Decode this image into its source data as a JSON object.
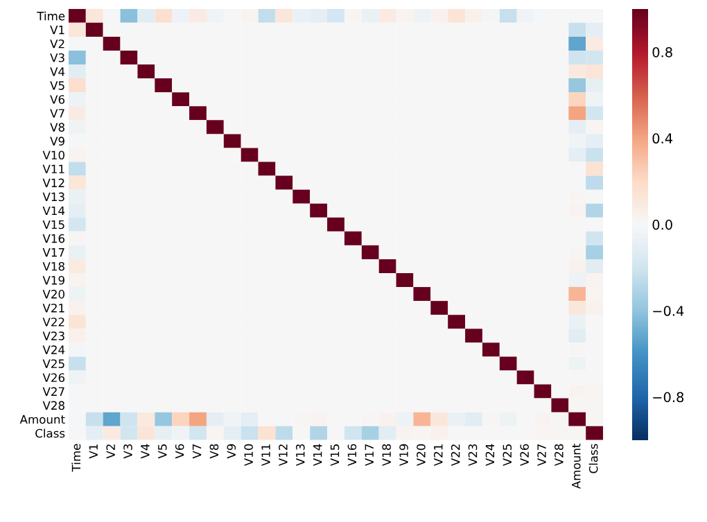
{
  "chart_data": {
    "type": "heatmap",
    "categories": [
      "Time",
      "V1",
      "V2",
      "V3",
      "V4",
      "V5",
      "V6",
      "V7",
      "V8",
      "V9",
      "V10",
      "V11",
      "V12",
      "V13",
      "V14",
      "V15",
      "V16",
      "V17",
      "V18",
      "V19",
      "V20",
      "V21",
      "V22",
      "V23",
      "V24",
      "V25",
      "V26",
      "V27",
      "V28",
      "Amount",
      "Class"
    ],
    "y_categories": [
      "Time",
      "V1",
      "V2",
      "V3",
      "V4",
      "V5",
      "V6",
      "V7",
      "V8",
      "V9",
      "V10",
      "V11",
      "V12",
      "V13",
      "V14",
      "V15",
      "V16",
      "V17",
      "V18",
      "V19",
      "V20",
      "V21",
      "V22",
      "V23",
      "V24",
      "V25",
      "V26",
      "V27",
      "V28",
      "Amount",
      "Class"
    ],
    "cells": [
      [
        1,
        0.12,
        -0.01,
        -0.42,
        -0.11,
        0.17,
        -0.06,
        0.08,
        -0.04,
        -0.01,
        0.03,
        -0.25,
        0.12,
        -0.07,
        -0.1,
        -0.18,
        0.01,
        -0.07,
        0.09,
        0.03,
        -0.05,
        0.04,
        0.14,
        0.05,
        -0.02,
        -0.23,
        -0.04,
        -0.01,
        -0.01,
        -0.01,
        -0.01
      ],
      [
        0.12,
        1,
        0,
        0,
        0,
        0,
        0,
        0,
        0,
        0,
        0,
        0,
        0,
        0,
        0,
        0,
        0,
        0,
        0,
        0,
        0,
        0,
        0,
        0,
        0,
        0,
        0,
        0,
        0,
        -0.23,
        -0.1
      ],
      [
        -0.01,
        0,
        1,
        0,
        0,
        0,
        0,
        0,
        0,
        0,
        0,
        0,
        0,
        0,
        0,
        0,
        0,
        0,
        0,
        0,
        0,
        0,
        0,
        0,
        0,
        0,
        0,
        0,
        0,
        -0.53,
        0.09
      ],
      [
        -0.42,
        0,
        0,
        1,
        0,
        0,
        0,
        0,
        0,
        0,
        0,
        0,
        0,
        0,
        0,
        0,
        0,
        0,
        0,
        0,
        0,
        0,
        0,
        0,
        0,
        0,
        0,
        0,
        0,
        -0.21,
        -0.19
      ],
      [
        -0.11,
        0,
        0,
        0,
        1,
        0,
        0,
        0,
        0,
        0,
        0,
        0,
        0,
        0,
        0,
        0,
        0,
        0,
        0,
        0,
        0,
        0,
        0,
        0,
        0,
        0,
        0,
        0,
        0,
        0.1,
        0.13
      ],
      [
        0.17,
        0,
        0,
        0,
        0,
        1,
        0,
        0,
        0,
        0,
        0,
        0,
        0,
        0,
        0,
        0,
        0,
        0,
        0,
        0,
        0,
        0,
        0,
        0,
        0,
        0,
        0,
        0,
        0,
        -0.39,
        -0.09
      ],
      [
        -0.06,
        0,
        0,
        0,
        0,
        0,
        1,
        0,
        0,
        0,
        0,
        0,
        0,
        0,
        0,
        0,
        0,
        0,
        0,
        0,
        0,
        0,
        0,
        0,
        0,
        0,
        0,
        0,
        0,
        0.22,
        -0.04
      ],
      [
        0.08,
        0,
        0,
        0,
        0,
        0,
        0,
        1,
        0,
        0,
        0,
        0,
        0,
        0,
        0,
        0,
        0,
        0,
        0,
        0,
        0,
        0,
        0,
        0,
        0,
        0,
        0,
        0,
        0,
        0.4,
        -0.19
      ],
      [
        -0.04,
        0,
        0,
        0,
        0,
        0,
        0,
        0,
        1,
        0,
        0,
        0,
        0,
        0,
        0,
        0,
        0,
        0,
        0,
        0,
        0,
        0,
        0,
        0,
        0,
        0,
        0,
        0,
        0,
        -0.1,
        0.02
      ],
      [
        -0.01,
        0,
        0,
        0,
        0,
        0,
        0,
        0,
        0,
        1,
        0,
        0,
        0,
        0,
        0,
        0,
        0,
        0,
        0,
        0,
        0,
        0,
        0,
        0,
        0,
        0,
        0,
        0,
        0,
        -0.04,
        -0.1
      ],
      [
        0.03,
        0,
        0,
        0,
        0,
        0,
        0,
        0,
        0,
        0,
        1,
        0,
        0,
        0,
        0,
        0,
        0,
        0,
        0,
        0,
        0,
        0,
        0,
        0,
        0,
        0,
        0,
        0,
        0,
        -0.1,
        -0.22
      ],
      [
        -0.25,
        0,
        0,
        0,
        0,
        0,
        0,
        0,
        0,
        0,
        0,
        1,
        0,
        0,
        0,
        0,
        0,
        0,
        0,
        0,
        0,
        0,
        0,
        0,
        0,
        0,
        0,
        0,
        0,
        0,
        0.15
      ],
      [
        0.12,
        0,
        0,
        0,
        0,
        0,
        0,
        0,
        0,
        0,
        0,
        0,
        1,
        0,
        0,
        0,
        0,
        0,
        0,
        0,
        0,
        0,
        0,
        0,
        0,
        0,
        0,
        0,
        0,
        -0.01,
        -0.26
      ],
      [
        -0.07,
        0,
        0,
        0,
        0,
        0,
        0,
        0,
        0,
        0,
        0,
        0,
        0,
        1,
        0,
        0,
        0,
        0,
        0,
        0,
        0,
        0,
        0,
        0,
        0,
        0,
        0,
        0,
        0,
        0.01,
        0
      ],
      [
        -0.1,
        0,
        0,
        0,
        0,
        0,
        0,
        0,
        0,
        0,
        0,
        0,
        0,
        0,
        1,
        0,
        0,
        0,
        0,
        0,
        0,
        0,
        0,
        0,
        0,
        0,
        0,
        0,
        0,
        0.03,
        -0.3
      ],
      [
        -0.18,
        0,
        0,
        0,
        0,
        0,
        0,
        0,
        0,
        0,
        0,
        0,
        0,
        0,
        0,
        1,
        0,
        0,
        0,
        0,
        0,
        0,
        0,
        0,
        0,
        0,
        0,
        0,
        0,
        0,
        0
      ],
      [
        0.01,
        0,
        0,
        0,
        0,
        0,
        0,
        0,
        0,
        0,
        0,
        0,
        0,
        0,
        0,
        0,
        1,
        0,
        0,
        0,
        0,
        0,
        0,
        0,
        0,
        0,
        0,
        0,
        0,
        0,
        -0.2
      ],
      [
        -0.07,
        0,
        0,
        0,
        0,
        0,
        0,
        0,
        0,
        0,
        0,
        0,
        0,
        0,
        0,
        0,
        0,
        1,
        0,
        0,
        0,
        0,
        0,
        0,
        0,
        0,
        0,
        0,
        0,
        0.01,
        -0.33
      ],
      [
        0.09,
        0,
        0,
        0,
        0,
        0,
        0,
        0,
        0,
        0,
        0,
        0,
        0,
        0,
        0,
        0,
        0,
        0,
        1,
        0,
        0,
        0,
        0,
        0,
        0,
        0,
        0,
        0,
        0,
        0.04,
        -0.11
      ],
      [
        0.03,
        0,
        0,
        0,
        0,
        0,
        0,
        0,
        0,
        0,
        0,
        0,
        0,
        0,
        0,
        0,
        0,
        0,
        0,
        1,
        0,
        0,
        0,
        0,
        0,
        0,
        0,
        0,
        0,
        -0.06,
        0.03
      ],
      [
        -0.05,
        0,
        0,
        0,
        0,
        0,
        0,
        0,
        0,
        0,
        0,
        0,
        0,
        0,
        0,
        0,
        0,
        0,
        0,
        0,
        1,
        0,
        0,
        0,
        0,
        0,
        0,
        0,
        0,
        0.34,
        0.02
      ],
      [
        0.04,
        0,
        0,
        0,
        0,
        0,
        0,
        0,
        0,
        0,
        0,
        0,
        0,
        0,
        0,
        0,
        0,
        0,
        0,
        0,
        0,
        1,
        0,
        0,
        0,
        0,
        0,
        0,
        0,
        0.11,
        0.04
      ],
      [
        0.14,
        0,
        0,
        0,
        0,
        0,
        0,
        0,
        0,
        0,
        0,
        0,
        0,
        0,
        0,
        0,
        0,
        0,
        0,
        0,
        0,
        0,
        1,
        0,
        0,
        0,
        0,
        0,
        0,
        -0.07,
        0
      ],
      [
        0.05,
        0,
        0,
        0,
        0,
        0,
        0,
        0,
        0,
        0,
        0,
        0,
        0,
        0,
        0,
        0,
        0,
        0,
        0,
        0,
        0,
        0,
        0,
        1,
        0,
        0,
        0,
        0,
        0,
        -0.11,
        0
      ],
      [
        -0.02,
        0,
        0,
        0,
        0,
        0,
        0,
        0,
        0,
        0,
        0,
        0,
        0,
        0,
        0,
        0,
        0,
        0,
        0,
        0,
        0,
        0,
        0,
        0,
        1,
        0,
        0,
        0,
        0,
        0.01,
        -0.01
      ],
      [
        -0.23,
        0,
        0,
        0,
        0,
        0,
        0,
        0,
        0,
        0,
        0,
        0,
        0,
        0,
        0,
        0,
        0,
        0,
        0,
        0,
        0,
        0,
        0,
        0,
        0,
        1,
        0,
        0,
        0,
        -0.05,
        0
      ],
      [
        -0.04,
        0,
        0,
        0,
        0,
        0,
        0,
        0,
        0,
        0,
        0,
        0,
        0,
        0,
        0,
        0,
        0,
        0,
        0,
        0,
        0,
        0,
        0,
        0,
        0,
        0,
        1,
        0,
        0,
        0,
        0
      ],
      [
        -0.01,
        0,
        0,
        0,
        0,
        0,
        0,
        0,
        0,
        0,
        0,
        0,
        0,
        0,
        0,
        0,
        0,
        0,
        0,
        0,
        0,
        0,
        0,
        0,
        0,
        0,
        0,
        1,
        0,
        0.03,
        0.02
      ],
      [
        -0.01,
        0,
        0,
        0,
        0,
        0,
        0,
        0,
        0,
        0,
        0,
        0,
        0,
        0,
        0,
        0,
        0,
        0,
        0,
        0,
        0,
        0,
        0,
        0,
        0,
        0,
        0,
        0,
        1,
        0.01,
        0.01
      ],
      [
        -0.01,
        -0.23,
        -0.53,
        -0.21,
        0.1,
        -0.39,
        0.22,
        0.4,
        -0.1,
        -0.04,
        -0.1,
        0,
        -0.01,
        0.01,
        0.03,
        0,
        0,
        0.01,
        0.04,
        -0.06,
        0.34,
        0.11,
        -0.07,
        -0.11,
        0.01,
        -0.05,
        0,
        0.03,
        0.01,
        1,
        0.01
      ],
      [
        -0.01,
        -0.1,
        0.09,
        -0.19,
        0.13,
        -0.09,
        -0.04,
        -0.19,
        0.02,
        -0.1,
        -0.22,
        0.15,
        -0.26,
        0,
        -0.3,
        0,
        -0.2,
        -0.33,
        -0.11,
        0.03,
        0.02,
        0.04,
        0,
        0,
        -0.01,
        0,
        0,
        0.02,
        0.01,
        0.01,
        1
      ]
    ],
    "clim": [
      -1,
      1
    ],
    "cticks": [
      {
        "value": -0.8,
        "label": "−0.8"
      },
      {
        "value": -0.4,
        "label": "−0.4"
      },
      {
        "value": 0,
        "label": "0.0"
      },
      {
        "value": 0.4,
        "label": "0.4"
      },
      {
        "value": 0.8,
        "label": "0.8"
      }
    ]
  }
}
